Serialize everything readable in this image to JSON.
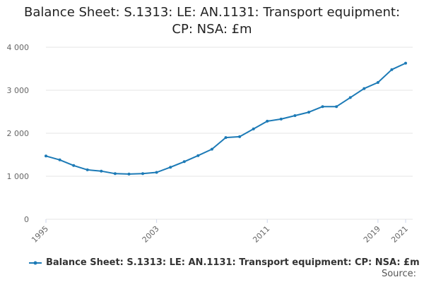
{
  "title": {
    "line1": "Balance Sheet: S.1313: LE: AN.1131: Transport equipment:",
    "line2": "CP: NSA: £m"
  },
  "legend_label": "Balance Sheet: S.1313: LE: AN.1131: Transport equipment: CP: NSA: £m",
  "source_label": "Source:",
  "colors": {
    "series": "#1c7ab6",
    "grid": "#e6e6e6",
    "axis_text": "#666666"
  },
  "chart_data": {
    "type": "line",
    "title": "Balance Sheet: S.1313: LE: AN.1131: Transport equipment: CP: NSA: £m",
    "xlabel": "",
    "ylabel": "",
    "x": [
      1995,
      1996,
      1997,
      1998,
      1999,
      2000,
      2001,
      2002,
      2003,
      2004,
      2005,
      2006,
      2007,
      2008,
      2009,
      2010,
      2011,
      2012,
      2013,
      2014,
      2015,
      2016,
      2017,
      2018,
      2019,
      2020,
      2021
    ],
    "series": [
      {
        "name": "Balance Sheet: S.1313: LE: AN.1131: Transport equipment: CP: NSA: £m",
        "values": [
          1470,
          1380,
          1250,
          1150,
          1120,
          1060,
          1050,
          1060,
          1090,
          1210,
          1340,
          1480,
          1630,
          1900,
          1920,
          2100,
          2280,
          2330,
          2410,
          2490,
          2620,
          2620,
          2830,
          3040,
          3180,
          3480,
          3630
        ]
      }
    ],
    "xlim": [
      1995,
      2021
    ],
    "ylim": [
      0,
      4000
    ],
    "x_ticks": [
      1995,
      2003,
      2011,
      2019,
      2021
    ],
    "x_tick_labels": [
      "1995",
      "2003",
      "2011",
      "2019",
      "2021"
    ],
    "y_ticks": [
      0,
      1000,
      2000,
      3000,
      4000
    ],
    "y_tick_labels": [
      "0",
      "1 000",
      "2 000",
      "3 000",
      "4 000"
    ],
    "grid": true,
    "legend": "bottom-left"
  }
}
